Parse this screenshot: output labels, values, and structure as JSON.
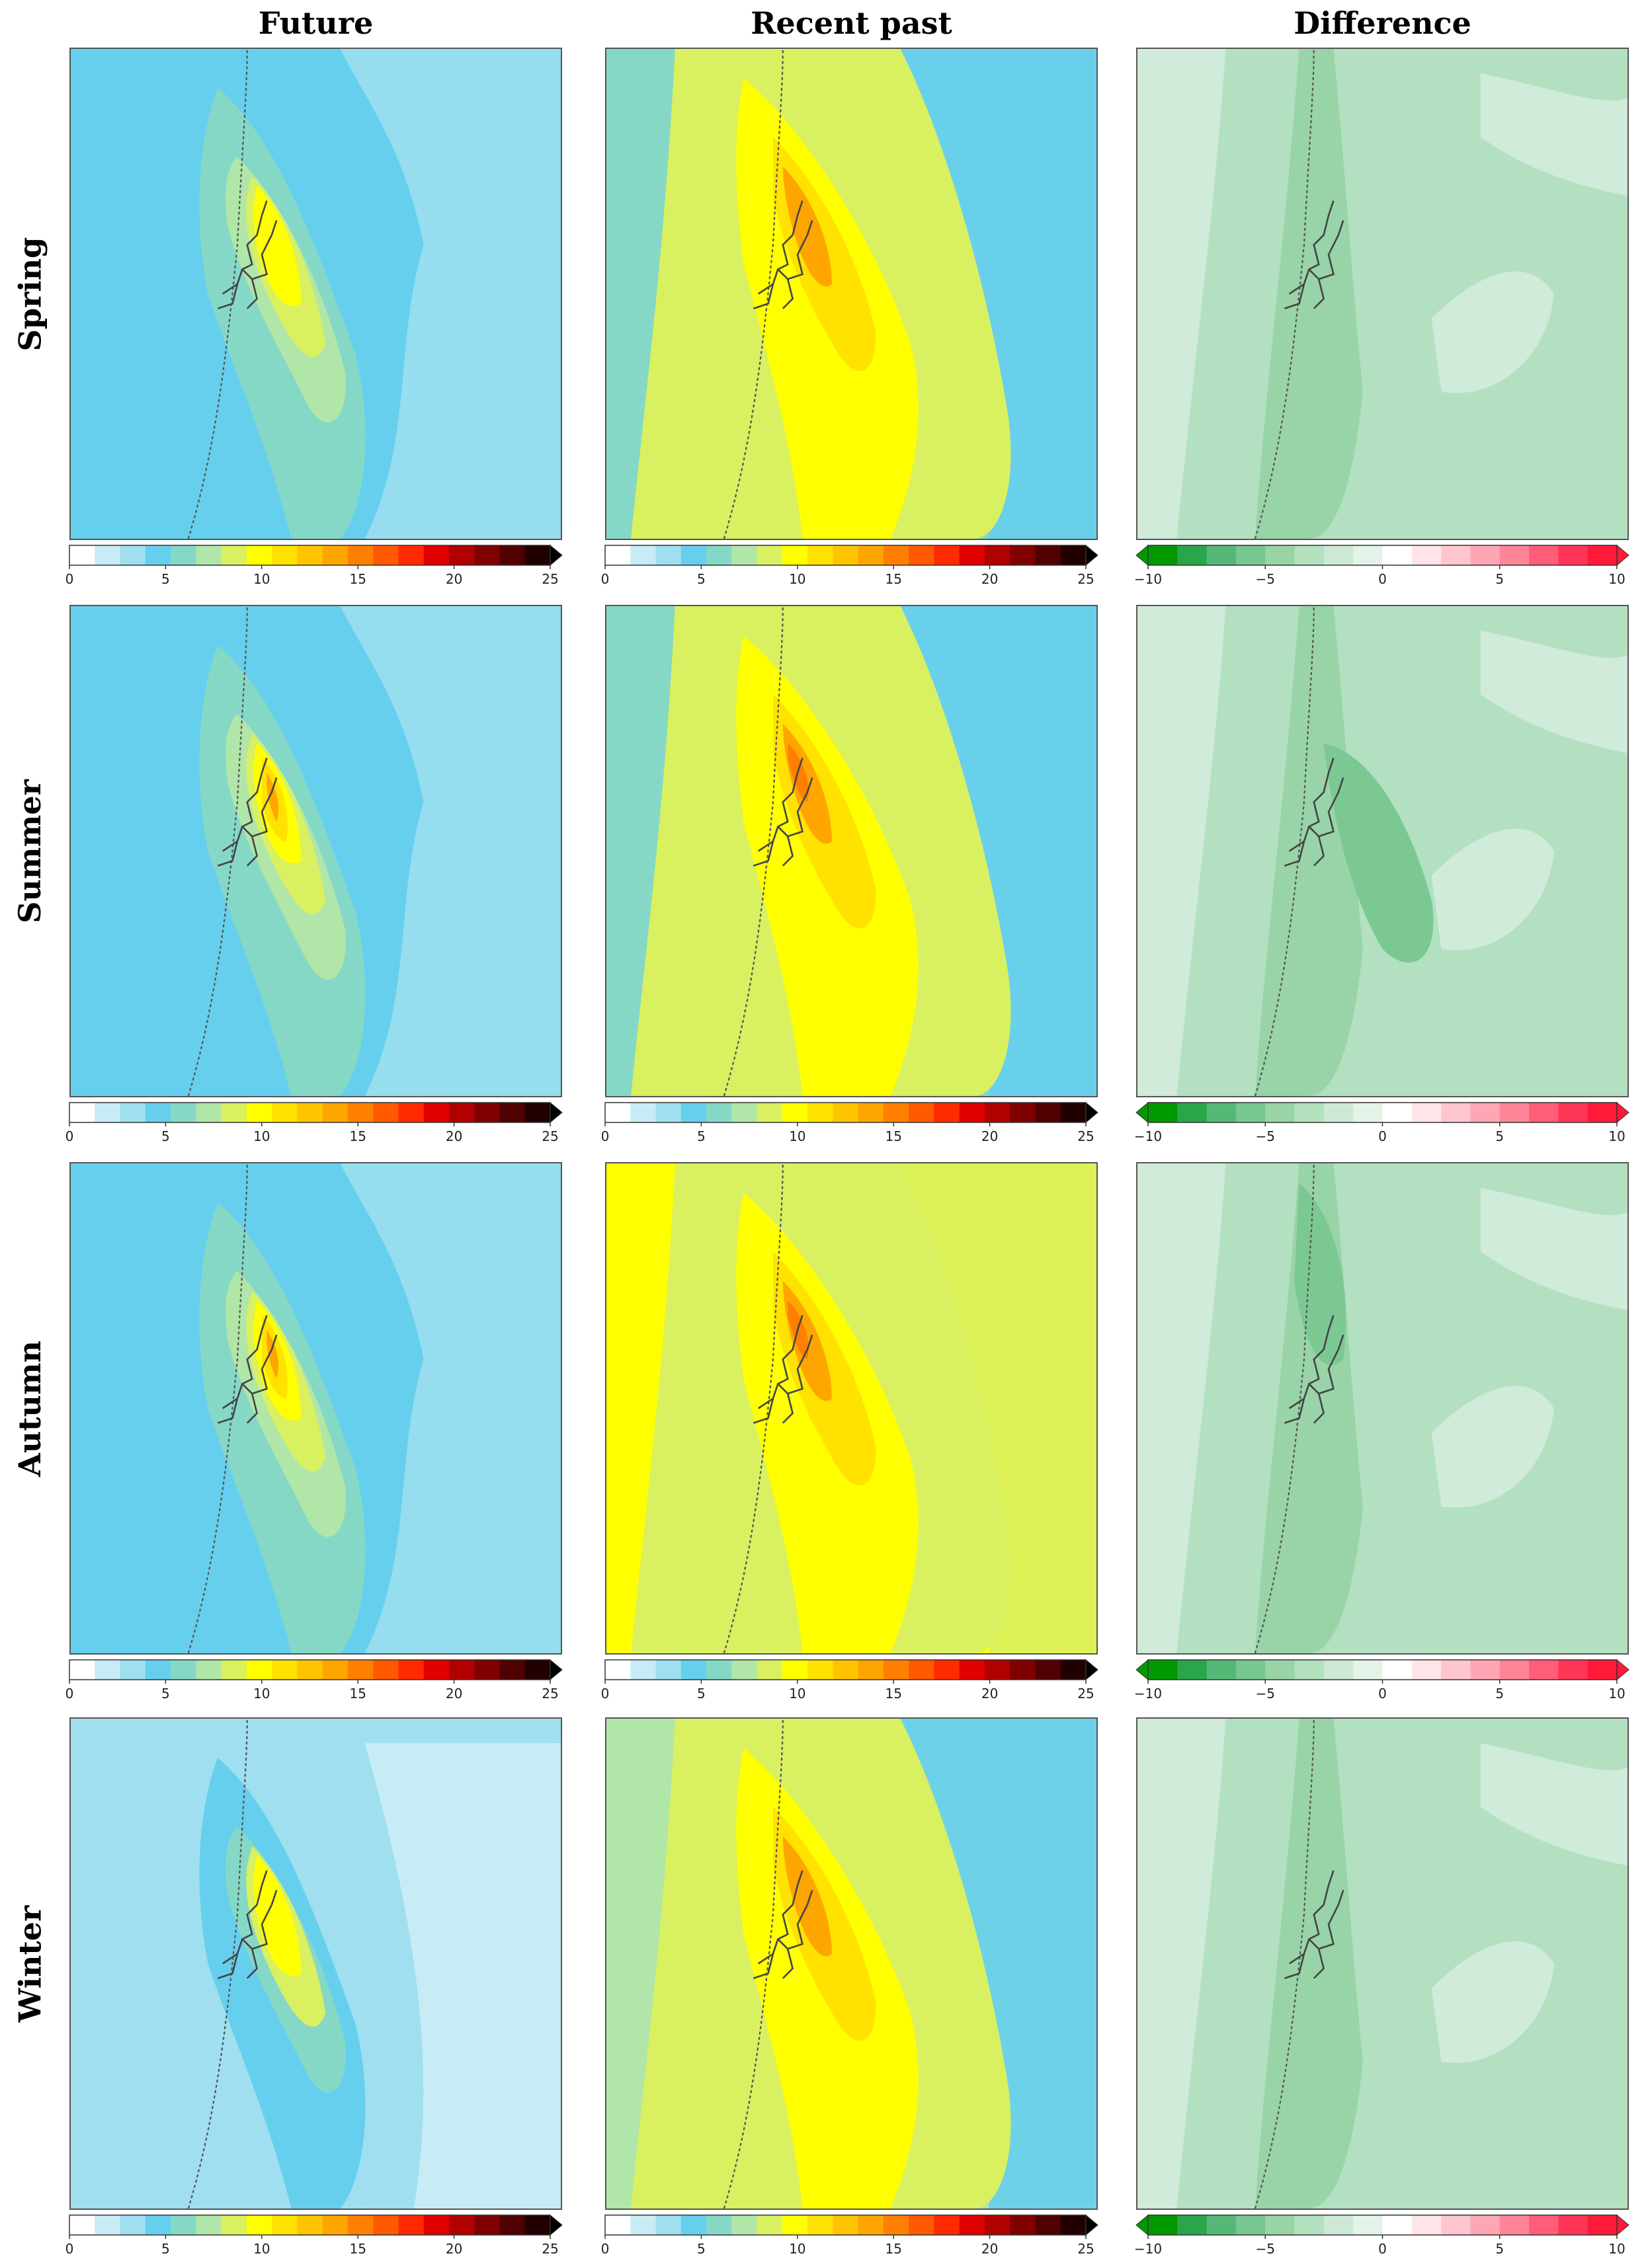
{
  "columns": [
    "Future",
    "Recent past",
    "Difference"
  ],
  "rows": [
    "Spring",
    "Summer",
    "Autumn",
    "Winter"
  ],
  "colorbars": {
    "absolute": {
      "ticks": [
        "0",
        "5",
        "10",
        "15",
        "20",
        "25"
      ],
      "range": [
        0,
        25
      ],
      "extend": "max",
      "colors": [
        "#ffffff",
        "#c7ecf5",
        "#9fdff0",
        "#66cfee",
        "#86d8c6",
        "#b0e6a8",
        "#d9f060",
        "#ffff00",
        "#ffe200",
        "#ffc400",
        "#ffa500",
        "#ff8000",
        "#ff5a00",
        "#ff2a00",
        "#e00000",
        "#b00000",
        "#800000",
        "#500000",
        "#200000"
      ]
    },
    "difference": {
      "ticks": [
        "−10",
        "−5",
        "0",
        "5",
        "10"
      ],
      "range": [
        -10,
        10
      ],
      "extend": "both",
      "colors": [
        "#009900",
        "#2aa64a",
        "#55b877",
        "#78c790",
        "#98d4a6",
        "#b3e0bd",
        "#cde9d6",
        "#e3f3e8",
        "#ffffff",
        "#ffe4e8",
        "#ffc6cf",
        "#ffa6b4",
        "#ff8497",
        "#ff5d78",
        "#ff3558",
        "#ff1a3a"
      ]
    }
  },
  "palette": {
    "light_blue": "#9fdff0",
    "blue": "#66cfee",
    "teal": "#86d8c6",
    "light_green": "#b0e6a8",
    "yellow_green": "#d9f060",
    "yellow": "#ffff00",
    "gold": "#ffe200",
    "orange": "#ffa500",
    "dark_orange": "#ff7f00",
    "diff_pale": "#d0ebd9",
    "diff_light": "#b3e0c1",
    "diff_mid": "#98d4a8",
    "diff_dark": "#7cc893"
  }
}
